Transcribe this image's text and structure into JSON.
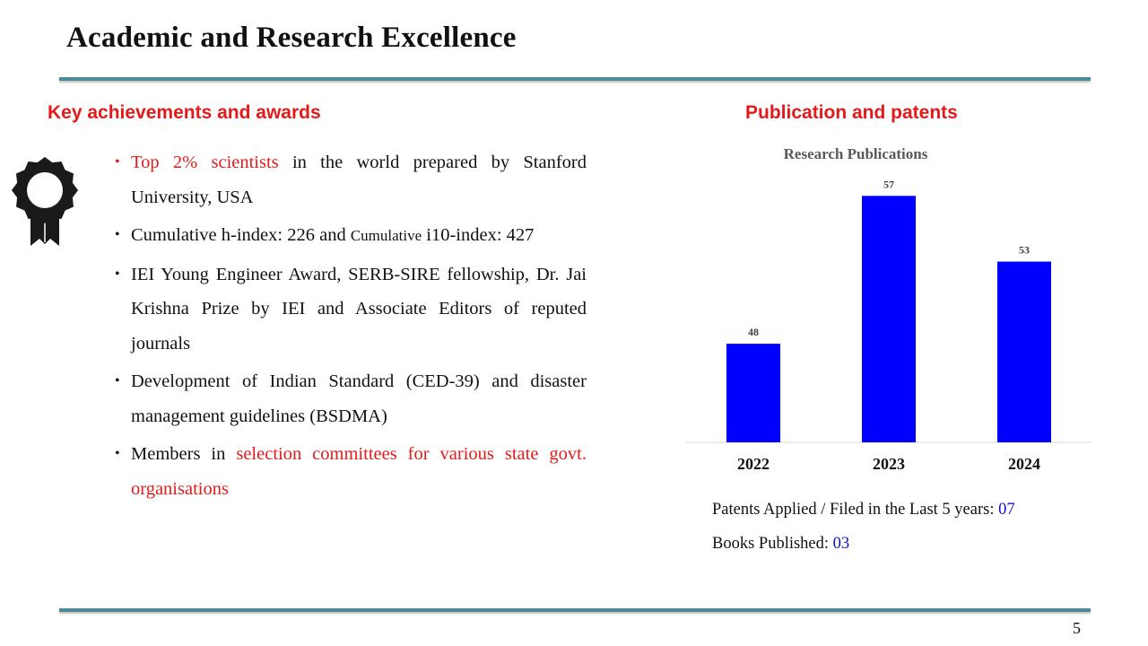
{
  "title": "Academic and Research Excellence",
  "left": {
    "heading": "Key achievements and  awards",
    "icon": "award-ribbon-icon",
    "bullets": [
      {
        "parts": [
          "Top 2% scientists",
          " in the world prepared by Stanford University, USA"
        ]
      },
      {
        "parts": [
          "Cumulative h-index: 226 and ",
          "Cumulative",
          " i10-index: 427"
        ]
      },
      {
        "parts": [
          "IEI Young Engineer Award, SERB-SIRE  fellowship, Dr. Jai Krishna Prize by IEI and Associate Editors of reputed journals"
        ]
      },
      {
        "parts": [
          "Development of Indian Standard (CED-39) and disaster management guidelines (BSDMA)"
        ]
      },
      {
        "parts": [
          "Members in ",
          "selection committees for various state govt. organisations"
        ]
      }
    ]
  },
  "right": {
    "heading": "Publication and patents",
    "patents_label": "Patents Applied / Filed in the Last 5 years: ",
    "patents_value": "07",
    "books_label": "Books Published: ",
    "books_value": "03"
  },
  "chart_data": {
    "type": "bar",
    "title": "Research Publications",
    "categories": [
      "2022",
      "2023",
      "2024"
    ],
    "values": [
      48,
      57,
      53
    ],
    "data_labels": [
      "48",
      "57",
      "53"
    ],
    "xlabel": "",
    "ylabel": "",
    "ylim": [
      42,
      58
    ],
    "grid": false,
    "bar_color": "#0000ff"
  },
  "page_number": "5"
}
